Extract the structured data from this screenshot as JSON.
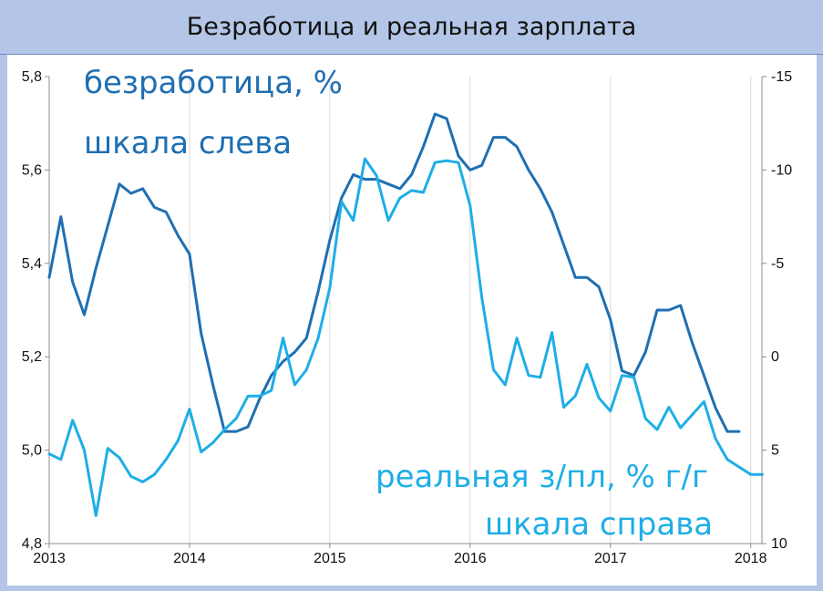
{
  "header": {
    "title": "Безработица и реальная зарплата"
  },
  "chart_data": {
    "type": "line",
    "title": "Безработица и реальная зарплата",
    "grid": "vertical",
    "x_range": [
      2013,
      2018.08
    ],
    "x_ticks": [
      "2013",
      "2014",
      "2015",
      "2016",
      "2017",
      "2018"
    ],
    "y_left": {
      "range": [
        4.8,
        5.8
      ],
      "ticks": [
        "4,8",
        "5,0",
        "5,2",
        "5,4",
        "5,6",
        "5,8"
      ]
    },
    "y_right": {
      "range": [
        10,
        -15
      ],
      "ticks": [
        "10",
        "5",
        "0",
        "-5",
        "-10",
        "-15"
      ],
      "inverted": true
    },
    "annotations": {
      "left_series": [
        "безработица, %",
        "шкала слева"
      ],
      "right_series": [
        "реальная з/пл, % г/г",
        "шкала справа"
      ]
    },
    "series": [
      {
        "axis": "left",
        "color": "#1f6fb2",
        "x": [
          2013.0,
          2013.083,
          2013.167,
          2013.25,
          2013.333,
          2013.417,
          2013.5,
          2013.583,
          2013.667,
          2013.75,
          2013.833,
          2013.917,
          2014.0,
          2014.083,
          2014.167,
          2014.25,
          2014.333,
          2014.417,
          2014.5,
          2014.583,
          2014.667,
          2014.75,
          2014.833,
          2014.917,
          2015.0,
          2015.083,
          2015.167,
          2015.25,
          2015.333,
          2015.417,
          2015.5,
          2015.583,
          2015.667,
          2015.75,
          2015.833,
          2015.917,
          2016.0,
          2016.083,
          2016.167,
          2016.25,
          2016.333,
          2016.417,
          2016.5,
          2016.583,
          2016.667,
          2016.75,
          2016.833,
          2016.917,
          2017.0,
          2017.083,
          2017.167,
          2017.25,
          2017.333,
          2017.417,
          2017.5,
          2017.583,
          2017.667,
          2017.75,
          2017.833,
          2017.917
        ],
        "values": [
          5.37,
          5.5,
          5.36,
          5.29,
          5.39,
          5.48,
          5.57,
          5.55,
          5.56,
          5.52,
          5.51,
          5.46,
          5.42,
          5.25,
          5.14,
          5.04,
          5.04,
          5.05,
          5.11,
          5.16,
          5.19,
          5.21,
          5.24,
          5.34,
          5.45,
          5.54,
          5.59,
          5.58,
          5.58,
          5.57,
          5.56,
          5.59,
          5.65,
          5.72,
          5.71,
          5.63,
          5.6,
          5.61,
          5.67,
          5.67,
          5.65,
          5.6,
          5.56,
          5.51,
          5.44,
          5.37,
          5.37,
          5.35,
          5.28,
          5.17,
          5.16,
          5.21,
          5.3,
          5.3,
          5.31,
          5.23,
          5.16,
          5.09,
          5.04,
          5.04
        ]
      },
      {
        "axis": "right",
        "color": "#1eaee6",
        "x": [
          2013.0,
          2013.083,
          2013.167,
          2013.25,
          2013.333,
          2013.417,
          2013.5,
          2013.583,
          2013.667,
          2013.75,
          2013.833,
          2013.917,
          2014.0,
          2014.083,
          2014.167,
          2014.25,
          2014.333,
          2014.417,
          2014.5,
          2014.583,
          2014.667,
          2014.75,
          2014.833,
          2014.917,
          2015.0,
          2015.083,
          2015.167,
          2015.25,
          2015.333,
          2015.417,
          2015.5,
          2015.583,
          2015.667,
          2015.75,
          2015.833,
          2015.917,
          2016.0,
          2016.083,
          2016.167,
          2016.25,
          2016.333,
          2016.417,
          2016.5,
          2016.583,
          2016.667,
          2016.75,
          2016.833,
          2016.917,
          2017.0,
          2017.083,
          2017.167,
          2017.25,
          2017.333,
          2017.417,
          2017.5,
          2017.583,
          2017.667,
          2017.75,
          2017.833,
          2017.917,
          2018.0,
          2018.083
        ],
        "values": [
          5.2,
          5.5,
          3.4,
          5.0,
          8.5,
          4.9,
          5.4,
          6.4,
          6.7,
          6.3,
          5.5,
          4.5,
          2.8,
          5.1,
          4.6,
          3.9,
          3.3,
          2.1,
          2.1,
          1.8,
          -1.0,
          1.5,
          0.7,
          -1.0,
          -3.7,
          -8.3,
          -7.3,
          -10.6,
          -9.7,
          -7.3,
          -8.5,
          -8.9,
          -8.8,
          -10.4,
          -10.5,
          -10.4,
          -8.1,
          -3.2,
          0.7,
          1.5,
          -1.0,
          1.0,
          1.1,
          -1.3,
          2.7,
          2.1,
          0.4,
          2.2,
          2.9,
          1.0,
          1.1,
          3.3,
          3.9,
          2.7,
          3.8,
          3.1,
          2.4,
          4.4,
          5.5,
          5.9,
          6.3,
          6.3
        ]
      }
    ]
  }
}
